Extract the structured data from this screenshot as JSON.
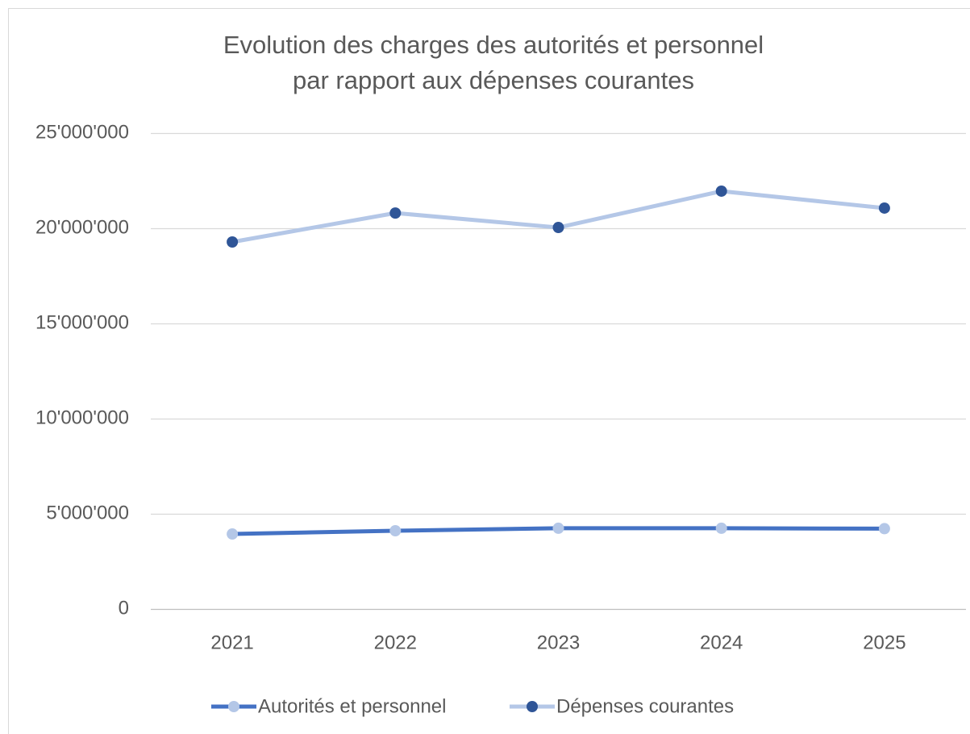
{
  "chart_data": {
    "type": "line",
    "title": [
      "Evolution des charges des autorités et personnel",
      "par rapport aux dépenses courantes"
    ],
    "categories": [
      "2021",
      "2022",
      "2023",
      "2024",
      "2025"
    ],
    "series": [
      {
        "name": "Autorités et personnel",
        "color": "#4472c4",
        "marker_color": "#b4c7e7",
        "values": [
          3940000,
          4110000,
          4240000,
          4240000,
          4220000
        ]
      },
      {
        "name": "Dépenses courantes",
        "color": "#b4c7e7",
        "marker_color": "#2f5597",
        "values": [
          19280000,
          20800000,
          20040000,
          21950000,
          21060000
        ]
      }
    ],
    "ylim": [
      0,
      25000000
    ],
    "yticks": [
      0,
      {
        "value": 5000000,
        "label": "5'000'000"
      },
      {
        "value": 10000000,
        "label": "10'000'000"
      },
      {
        "value": 15000000,
        "label": "15'000'000"
      },
      {
        "value": 20000000,
        "label": "20'000'000"
      },
      {
        "value": 25000000,
        "label": "25'000'000"
      }
    ],
    "grid": true,
    "legend": "bottom"
  }
}
